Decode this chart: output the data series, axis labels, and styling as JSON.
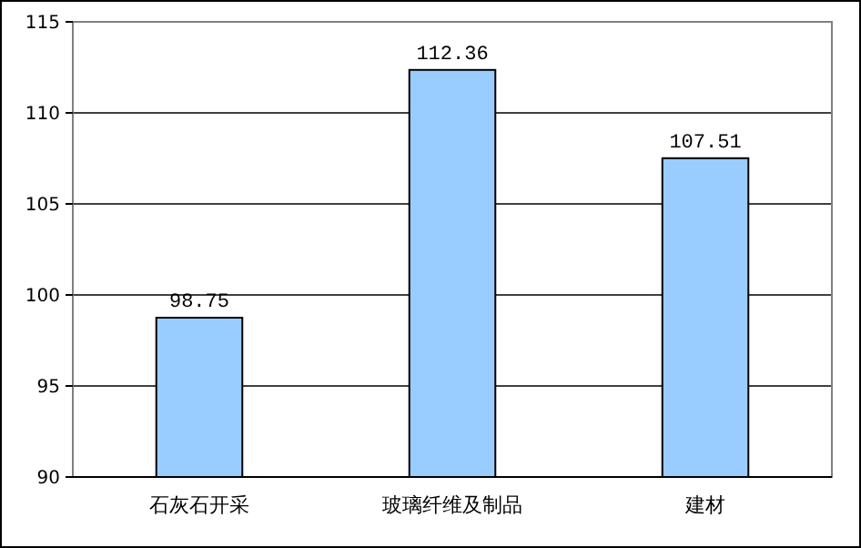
{
  "chart_data": {
    "type": "bar",
    "categories": [
      "石灰石开采",
      "玻璃纤维及制品",
      "建材"
    ],
    "values": [
      98.75,
      112.36,
      107.51
    ],
    "color": "#99ccff",
    "ylim": [
      90,
      115
    ],
    "yticks": [
      90,
      95,
      100,
      105,
      110,
      115
    ],
    "grid": "y",
    "data_labels": true
  }
}
